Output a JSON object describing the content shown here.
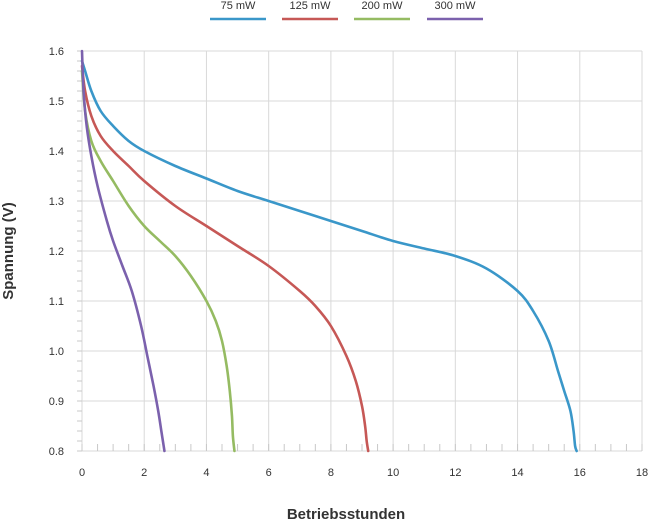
{
  "chart_data": {
    "type": "line",
    "xlabel": "Betriebsstunden",
    "ylabel": "Spannung (V)",
    "xlim": [
      0,
      18
    ],
    "ylim": [
      0.8,
      1.6
    ],
    "xticks": [
      0,
      2,
      4,
      6,
      8,
      10,
      12,
      14,
      16,
      18
    ],
    "yticks": [
      "0.8",
      "0.9",
      "1.0",
      "1.1",
      "1.2",
      "1.3",
      "1.4",
      "1.5",
      "1.6"
    ],
    "grid": true,
    "legend_position": "top-center",
    "series": [
      {
        "name": "75 mW",
        "color": "#3a97c9",
        "x": [
          0,
          0.1,
          0.3,
          0.6,
          1,
          1.5,
          2,
          3,
          4,
          5,
          6,
          7,
          8,
          9,
          10,
          11,
          12,
          13,
          14,
          14.5,
          15,
          15.3,
          15.5,
          15.7,
          15.8,
          15.85,
          15.9
        ],
        "y": [
          1.58,
          1.56,
          1.52,
          1.48,
          1.45,
          1.42,
          1.4,
          1.37,
          1.345,
          1.32,
          1.3,
          1.28,
          1.26,
          1.24,
          1.22,
          1.205,
          1.19,
          1.165,
          1.12,
          1.08,
          1.02,
          0.96,
          0.92,
          0.88,
          0.84,
          0.81,
          0.8
        ]
      },
      {
        "name": "125 mW",
        "color": "#c65856",
        "x": [
          0,
          0.1,
          0.3,
          0.6,
          1,
          1.5,
          2,
          3,
          4,
          5,
          6,
          7,
          7.5,
          8,
          8.5,
          8.8,
          9.0,
          9.1,
          9.15,
          9.2
        ],
        "y": [
          1.57,
          1.52,
          1.47,
          1.43,
          1.4,
          1.37,
          1.34,
          1.29,
          1.25,
          1.21,
          1.17,
          1.12,
          1.09,
          1.05,
          0.99,
          0.94,
          0.89,
          0.85,
          0.82,
          0.8
        ]
      },
      {
        "name": "200 mW",
        "color": "#95bb62",
        "x": [
          0,
          0.1,
          0.3,
          0.6,
          1,
          1.5,
          2,
          2.5,
          3,
          3.5,
          4,
          4.3,
          4.5,
          4.65,
          4.75,
          4.82,
          4.85,
          4.9
        ],
        "y": [
          1.56,
          1.48,
          1.42,
          1.38,
          1.34,
          1.29,
          1.25,
          1.22,
          1.19,
          1.15,
          1.1,
          1.06,
          1.02,
          0.97,
          0.92,
          0.87,
          0.83,
          0.8
        ]
      },
      {
        "name": "300 mW",
        "color": "#7b61ad",
        "x": [
          0,
          0.05,
          0.15,
          0.3,
          0.5,
          0.8,
          1.0,
          1.3,
          1.6,
          1.9,
          2.1,
          2.3,
          2.45,
          2.55,
          2.6,
          2.65
        ],
        "y": [
          1.6,
          1.52,
          1.45,
          1.39,
          1.33,
          1.26,
          1.22,
          1.17,
          1.12,
          1.05,
          0.99,
          0.93,
          0.88,
          0.84,
          0.82,
          0.8
        ]
      }
    ]
  }
}
